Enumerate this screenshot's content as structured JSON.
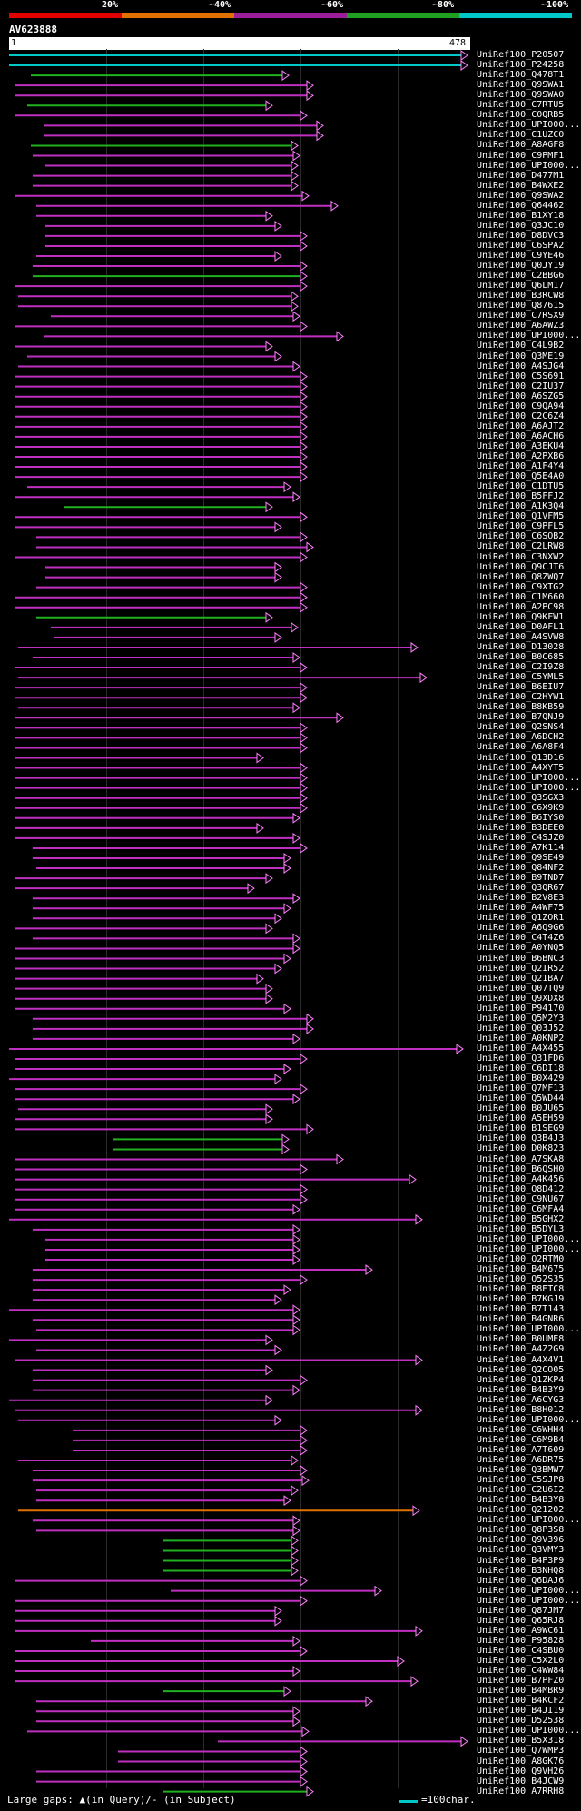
{
  "query": {
    "name": "AV623888",
    "length_label": "478",
    "start_label": "1"
  },
  "identity_legend": [
    {
      "label": "20%",
      "color": "#e00000"
    },
    {
      "label": "~40%",
      "color": "#e07000"
    },
    {
      "label": "~60%",
      "color": "#9a1d9a"
    },
    {
      "label": "~80%",
      "color": "#20a020"
    },
    {
      "label": "~100%",
      "color": "#00c8c8"
    }
  ],
  "hits": [
    "UniRef100_P20507",
    "UniRef100_P24258",
    "UniRef100_Q478T1",
    "UniRef100_Q9SWA1",
    "UniRef100_Q9SWA0",
    "UniRef100_C7RTU5",
    "UniRef100_C0QRB5",
    "UniRef100_UPI000...",
    "UniRef100_C1UZC0",
    "UniRef100_A8AGF8",
    "UniRef100_C9PMF1",
    "UniRef100_UPI000...",
    "UniRef100_D477M1",
    "UniRef100_B4WXE2",
    "UniRef100_Q9SWA2",
    "UniRef100_Q64462",
    "UniRef100_B1XY18",
    "UniRef100_Q3JC10",
    "UniRef100_D8DVC3",
    "UniRef100_C6SPA2",
    "UniRef100_C9YE46",
    "UniRef100_Q0JY19",
    "UniRef100_C2BBG6",
    "UniRef100_Q6LM17",
    "UniRef100_B3RCW8",
    "UniRef100_Q87615",
    "UniRef100_C7RSX9",
    "UniRef100_A6AWZ3",
    "UniRef100_UPI000...",
    "UniRef100_C4L9B2",
    "UniRef100_Q3ME19",
    "UniRef100_A4SJG4",
    "UniRef100_C5S691",
    "UniRef100_C2IU37",
    "UniRef100_A6SZG5",
    "UniRef100_C9QA94",
    "UniRef100_C2C6Z4",
    "UniRef100_A6AJT2",
    "UniRef100_A6ACH6",
    "UniRef100_A3EKU4",
    "UniRef100_A2PXB6",
    "UniRef100_A1F4Y4",
    "UniRef100_Q5E4A0",
    "UniRef100_C1DTU5",
    "UniRef100_B5FFJ2",
    "UniRef100_A1K3Q4",
    "UniRef100_Q1VFM5",
    "UniRef100_C9PFL5",
    "UniRef100_C6SOB2",
    "UniRef100_C2LRW8",
    "UniRef100_C3NXW2",
    "UniRef100_Q9CJT6",
    "UniRef100_Q8ZWQ7",
    "UniRef100_C9XTG2",
    "UniRef100_C1M660",
    "UniRef100_A2PC98",
    "UniRef100_Q9KFW1",
    "UniRef100_D0AFL1",
    "UniRef100_A4SVW8",
    "UniRef100_D13028",
    "UniRef100_B0C685",
    "UniRef100_C2I9Z8",
    "UniRef100_C5YML5",
    "UniRef100_B6EIU7",
    "UniRef100_C2HYW1",
    "UniRef100_B8KB59",
    "UniRef100_B7QNJ9",
    "UniRef100_Q2SNS4",
    "UniRef100_A6DCH2",
    "UniRef100_A6A8F4",
    "UniRef100_Q13D16",
    "UniRef100_A4XYT5",
    "UniRef100_UPI000...",
    "UniRef100_UPI000...",
    "UniRef100_Q3SGX3",
    "UniRef100_C6X9K9",
    "UniRef100_B6IYS0",
    "UniRef100_B3DEE0",
    "UniRef100_C4SJZ0",
    "UniRef100_A7K114",
    "UniRef100_Q9SE49",
    "UniRef100_Q84NF2",
    "UniRef100_B9TND7",
    "UniRef100_Q3QR67",
    "UniRef100_B2V8E3",
    "UniRef100_A4WF75",
    "UniRef100_Q1ZOR1",
    "UniRef100_A6Q9G6",
    "UniRef100_C4T4Z6",
    "UniRef100_A0YNQ5",
    "UniRef100_B6BNC3",
    "UniRef100_Q2IR52",
    "UniRef100_Q21BA7",
    "UniRef100_Q07TQ9",
    "UniRef100_Q9XDX8",
    "UniRef100_P94170",
    "UniRef100_Q5M2Y3",
    "UniRef100_Q03J52",
    "UniRef100_A0KNP2",
    "UniRef100_A4X455",
    "UniRef100_Q31FD6",
    "UniRef100_C6DI18",
    "UniRef100_B0X429",
    "UniRef100_Q7MF13",
    "UniRef100_Q5WD44",
    "UniRef100_B0JU65",
    "UniRef100_A5EH59",
    "UniRef100_B1SEG9",
    "UniRef100_Q3B4J3",
    "UniRef100_D0K823",
    "UniRef100_A7SKA8",
    "UniRef100_B6QSH0",
    "UniRef100_A4K456",
    "UniRef100_Q8D412",
    "UniRef100_C9NU67",
    "UniRef100_C6MFA4",
    "UniRef100_B5GHX2",
    "UniRef100_B5DYL3",
    "UniRef100_UPI000...",
    "UniRef100_UPI000...",
    "UniRef100_Q2RTM0",
    "UniRef100_B4M675",
    "UniRef100_Q52S35",
    "UniRef100_B8ETC8",
    "UniRef100_B7KGJ9",
    "UniRef100_B7T143",
    "UniRef100_B4GNR6",
    "UniRef100_UPI000...",
    "UniRef100_B0UME8",
    "UniRef100_A4Z2G9",
    "UniRef100_A4X4V1",
    "UniRef100_Q2CO05",
    "UniRef100_Q1ZKP4",
    "UniRef100_B4B3Y9",
    "UniRef100_A6CYG3",
    "UniRef100_B8H012",
    "UniRef100_UPI000...",
    "UniRef100_C6WHH4",
    "UniRef100_C6M9B4",
    "UniRef100_A7T609",
    "UniRef100_A6DR75",
    "UniRef100_Q3BMW7",
    "UniRef100_C5SJP8",
    "UniRef100_C2U6I2",
    "UniRef100_B4B3Y8",
    "UniRef100_Q21202",
    "UniRef100_UPI000...",
    "UniRef100_Q8P3S8",
    "UniRef100_Q9V396",
    "UniRef100_Q3VMY3",
    "UniRef100_B4P3P9",
    "UniRef100_B3NHQ8",
    "UniRef100_Q6DAJ6",
    "UniRef100_UPI000...",
    "UniRef100_UPI000...",
    "UniRef100_Q87JM7",
    "UniRef100_Q65RJ8",
    "UniRef100_A9WC61",
    "UniRef100_P95828",
    "UniRef100_C4SBU0",
    "UniRef100_C5X2L0",
    "UniRef100_C4WW84",
    "UniRef100_B7PFZ0",
    "UniRef100_B4MBR9",
    "UniRef100_B4KCF2",
    "UniRef100_B4JI19",
    "UniRef100_D52538",
    "UniRef100_UPI000...",
    "UniRef100_B5X318",
    "UniRef100_Q7WMP3",
    "UniRef100_A8GK76",
    "UniRef100_Q9VH26",
    "UniRef100_B4JCW9",
    "UniRef100_A7RRH8"
  ],
  "footer": {
    "left_text": "Large gaps: ▲(in Query)/- (in Subject)",
    "key_text": "=100char."
  }
}
